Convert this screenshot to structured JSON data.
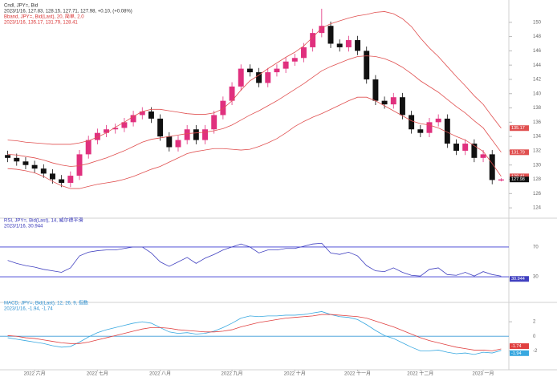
{
  "chart_data": [
    {
      "type": "candlestick",
      "annotations": [
        {
          "text": "Cndl, JPY=, Bid",
          "color": "#333333"
        },
        {
          "text": "2023/1/16, 127.83, 128.15, 127.71, 127.98, +0.10, (+0.08%)",
          "color": "#333333"
        },
        {
          "text": "Bband, JPY=, Bid(Last), 20, 简单, 2.0",
          "color": "#d83030"
        },
        {
          "text": "2023/1/16, 135.17, 131.79, 128.41",
          "color": "#d83030"
        }
      ],
      "up_color": "#e0307e",
      "down_color": "#111111",
      "open": [
        131.4,
        131.0,
        130.5,
        130.0,
        129.5,
        128.8,
        128.0,
        127.5,
        128.5,
        131.5,
        133.5,
        134.5,
        135.0,
        135.2,
        136.0,
        137.0,
        137.5,
        136.5,
        134.0,
        132.5,
        133.5,
        135.0,
        133.5,
        135.0,
        137.0,
        139.0,
        141.0,
        143.5,
        143.0,
        141.5,
        143.0,
        143.5,
        144.5,
        145.0,
        146.5,
        148.5,
        149.5,
        147.0,
        146.5,
        147.5,
        146.0,
        142.0,
        139.0,
        138.5,
        139.5,
        137.0,
        135.0,
        134.5,
        136.0,
        136.5,
        133.0,
        132.0,
        133.0,
        131.0,
        131.5,
        127.83
      ],
      "high": [
        132.0,
        131.6,
        131.1,
        130.6,
        130.1,
        129.4,
        128.6,
        129.1,
        132.1,
        134.1,
        135.1,
        135.6,
        135.8,
        136.6,
        137.6,
        138.1,
        138.1,
        137.1,
        134.6,
        134.1,
        135.6,
        135.6,
        135.6,
        137.6,
        139.6,
        141.6,
        144.1,
        144.1,
        143.6,
        143.6,
        144.1,
        145.1,
        145.6,
        147.1,
        149.1,
        151.9,
        150.1,
        147.6,
        148.1,
        148.1,
        146.6,
        142.6,
        139.6,
        140.1,
        140.1,
        137.6,
        135.6,
        136.6,
        137.1,
        137.1,
        133.6,
        133.6,
        133.6,
        132.1,
        132.1,
        128.15
      ],
      "low": [
        130.4,
        129.9,
        129.4,
        128.9,
        128.2,
        127.4,
        126.9,
        126.9,
        127.9,
        130.9,
        132.9,
        133.9,
        134.4,
        134.6,
        135.4,
        136.4,
        135.9,
        133.4,
        131.9,
        131.9,
        132.9,
        132.9,
        132.9,
        134.4,
        136.4,
        138.4,
        140.4,
        142.4,
        140.9,
        140.9,
        142.4,
        142.9,
        143.9,
        144.4,
        145.9,
        147.9,
        146.4,
        145.9,
        145.9,
        145.4,
        141.4,
        138.4,
        137.9,
        137.9,
        136.4,
        134.4,
        133.9,
        133.9,
        135.4,
        132.4,
        131.4,
        131.4,
        130.4,
        130.4,
        127.3,
        127.71
      ],
      "close": [
        131.0,
        130.5,
        130.0,
        129.5,
        128.8,
        128.0,
        127.5,
        128.5,
        131.5,
        133.5,
        134.5,
        135.0,
        135.2,
        136.0,
        137.0,
        137.5,
        136.5,
        134.0,
        132.5,
        133.5,
        135.0,
        133.5,
        135.0,
        137.0,
        139.0,
        141.0,
        143.5,
        143.0,
        141.5,
        143.0,
        143.5,
        144.5,
        145.0,
        146.5,
        148.5,
        149.5,
        147.0,
        146.5,
        147.5,
        146.0,
        142.0,
        139.0,
        138.5,
        139.5,
        137.0,
        135.0,
        134.5,
        136.0,
        136.5,
        133.0,
        132.0,
        133.0,
        131.0,
        131.5,
        127.9,
        127.98
      ],
      "series": [
        {
          "color": "#e05050",
          "values": [
            133.5,
            133.4,
            133.2,
            133.1,
            133.0,
            132.9,
            132.9,
            132.9,
            133.1,
            133.4,
            133.9,
            134.5,
            135.3,
            136.0,
            136.8,
            137.5,
            137.8,
            137.8,
            137.6,
            137.4,
            137.2,
            137.1,
            137.1,
            137.3,
            137.9,
            139.0,
            140.5,
            141.8,
            142.6,
            143.5,
            144.3,
            145.1,
            145.8,
            146.7,
            147.9,
            149.2,
            149.8,
            150.2,
            150.6,
            150.9,
            151.1,
            151.4,
            151.5,
            151.2,
            150.5,
            149.4,
            147.8,
            146.4,
            145.2,
            143.8,
            142.4,
            141.1,
            139.7,
            138.5,
            136.8,
            135.17
          ]
        },
        {
          "color": "#e05050",
          "values": [
            131.5,
            131.4,
            131.2,
            131.0,
            130.7,
            130.3,
            130.0,
            129.8,
            129.9,
            130.2,
            130.6,
            131.0,
            131.5,
            132.0,
            132.6,
            133.2,
            133.6,
            133.8,
            134.0,
            134.2,
            134.4,
            134.5,
            134.6,
            134.8,
            135.1,
            135.6,
            136.3,
            137.0,
            137.6,
            138.3,
            139.0,
            139.8,
            140.6,
            141.4,
            142.3,
            143.2,
            143.8,
            144.3,
            144.8,
            145.2,
            145.3,
            145.2,
            144.9,
            144.4,
            143.7,
            142.8,
            141.8,
            141.0,
            140.2,
            139.2,
            138.2,
            137.3,
            136.2,
            135.2,
            133.5,
            131.79
          ]
        },
        {
          "color": "#e05050",
          "values": [
            129.5,
            129.4,
            129.2,
            128.9,
            128.4,
            127.7,
            127.1,
            126.7,
            126.7,
            127.0,
            127.3,
            127.5,
            127.7,
            128.0,
            128.4,
            128.9,
            129.4,
            129.8,
            130.4,
            131.0,
            131.6,
            131.9,
            132.1,
            132.3,
            132.3,
            132.2,
            132.1,
            132.2,
            132.6,
            133.1,
            133.7,
            134.5,
            135.4,
            136.1,
            136.7,
            137.2,
            137.8,
            138.4,
            139.0,
            139.5,
            139.5,
            139.0,
            138.3,
            137.6,
            136.9,
            136.2,
            135.8,
            135.6,
            135.2,
            134.6,
            134.0,
            133.5,
            132.7,
            131.9,
            130.2,
            128.41
          ]
        }
      ],
      "ylim": [
        123,
        152
      ],
      "yticks": [
        124,
        126,
        128,
        130,
        132,
        134,
        136,
        138,
        140,
        142,
        144,
        146,
        148,
        150
      ]
    },
    {
      "type": "line",
      "annotations": [
        {
          "text": "RSI, JPY=, Bid(Last), 14, 威尔德平滑",
          "color": "#3434b8"
        },
        {
          "text": "2023/1/16, 30.944",
          "color": "#3434b8"
        }
      ],
      "series": [
        {
          "color": "#4040c0",
          "values": [
            52,
            48,
            45,
            43,
            40,
            38,
            36,
            42,
            58,
            63,
            65,
            66,
            66,
            68,
            70,
            70,
            62,
            50,
            44,
            50,
            56,
            48,
            55,
            60,
            66,
            70,
            74,
            70,
            62,
            66,
            66,
            68,
            68,
            71,
            74,
            75,
            62,
            60,
            63,
            58,
            45,
            38,
            37,
            42,
            36,
            32,
            31,
            40,
            42,
            33,
            32,
            36,
            31,
            37,
            33,
            30.944
          ]
        }
      ],
      "level_color": "#3a3ad0",
      "ylim": [
        0,
        100
      ],
      "yticks": [
        30,
        70
      ]
    },
    {
      "type": "line",
      "annotations": [
        {
          "text": "MACD, JPY=, Bid(Last), 12, 26, 9, 指数",
          "color": "#2b8fd0"
        },
        {
          "text": "2023/1/16, -1.94, -1.74",
          "color": "#2b8fd0"
        }
      ],
      "categories": [
        null,
        null,
        null,
        "2022 六月",
        null,
        null,
        null,
        null,
        null,
        null,
        "2022 七月",
        null,
        null,
        null,
        null,
        null,
        null,
        "2022 八月",
        null,
        null,
        null,
        null,
        null,
        null,
        null,
        "2022 九月",
        null,
        null,
        null,
        null,
        null,
        null,
        "2022 十月",
        null,
        null,
        null,
        null,
        null,
        null,
        "2022 十一月",
        null,
        null,
        null,
        null,
        null,
        null,
        "2022 十二月",
        null,
        null,
        null,
        null,
        null,
        null,
        "2023 一月",
        null,
        null
      ],
      "series": [
        {
          "color": "#38a8e0",
          "values": [
            -0.2,
            -0.4,
            -0.6,
            -0.8,
            -1.0,
            -1.3,
            -1.5,
            -1.4,
            -0.8,
            -0.1,
            0.5,
            0.9,
            1.2,
            1.5,
            1.8,
            2.0,
            1.8,
            1.2,
            0.6,
            0.4,
            0.5,
            0.3,
            0.4,
            0.7,
            1.2,
            1.8,
            2.5,
            2.8,
            2.7,
            2.8,
            2.8,
            2.9,
            2.9,
            3.0,
            3.2,
            3.4,
            3.0,
            2.7,
            2.6,
            2.3,
            1.6,
            0.8,
            0.1,
            -0.3,
            -0.9,
            -1.5,
            -2.0,
            -2.0,
            -1.9,
            -2.2,
            -2.4,
            -2.3,
            -2.5,
            -2.2,
            -2.3,
            -1.94
          ]
        },
        {
          "color": "#e04040",
          "values": [
            0.1,
            0,
            -0.2,
            -0.3,
            -0.5,
            -0.7,
            -0.9,
            -1.0,
            -1.0,
            -0.8,
            -0.5,
            -0.2,
            0.1,
            0.4,
            0.7,
            1.0,
            1.2,
            1.2,
            1.1,
            0.9,
            0.8,
            0.7,
            0.6,
            0.6,
            0.7,
            0.9,
            1.3,
            1.6,
            1.9,
            2.1,
            2.3,
            2.5,
            2.6,
            2.7,
            2.8,
            3.0,
            3.0,
            2.9,
            2.8,
            2.7,
            2.5,
            2.1,
            1.7,
            1.3,
            0.8,
            0.3,
            -0.2,
            -0.6,
            -0.9,
            -1.2,
            -1.5,
            -1.7,
            -1.9,
            -1.9,
            -2.0,
            -1.74
          ]
        }
      ],
      "level_color": "#3a9ad8",
      "ylim": [
        -4.5,
        4
      ],
      "yticks": [
        -2,
        0,
        2
      ]
    }
  ]
}
